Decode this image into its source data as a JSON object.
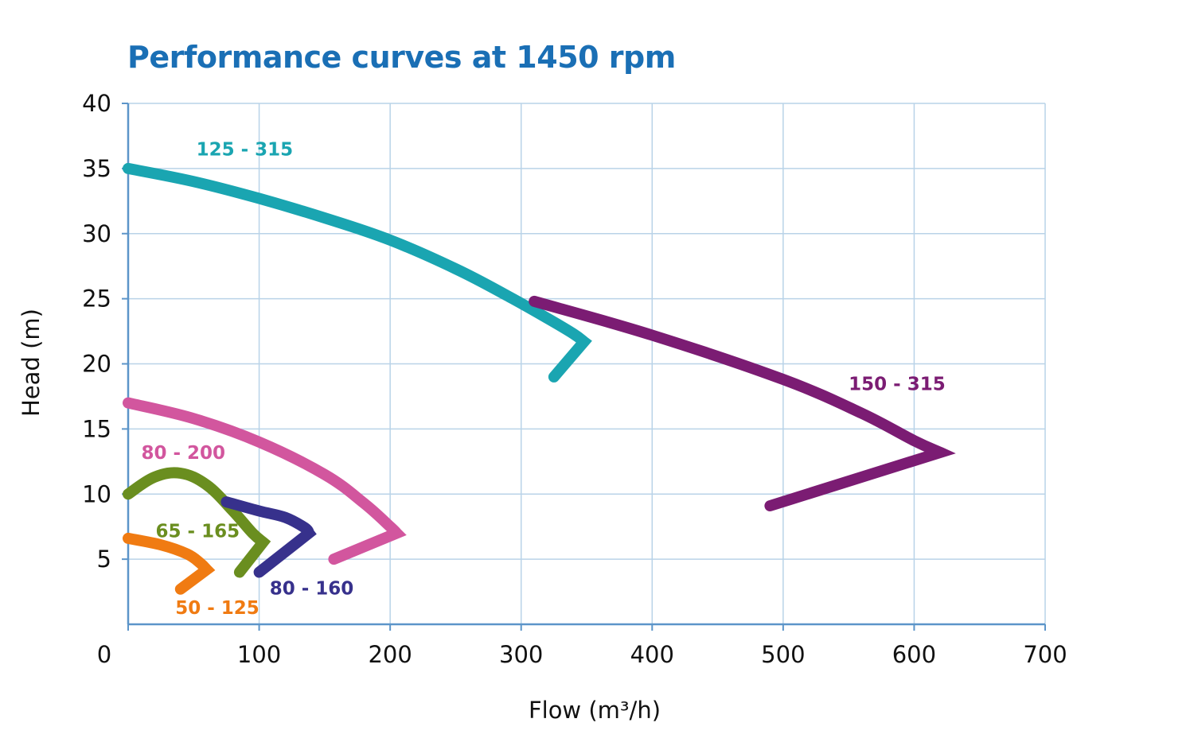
{
  "chart_data": {
    "type": "line",
    "title": "Performance curves at 1450 rpm",
    "title_color": "#1a6fb5",
    "xlabel": "Flow (m³/h)",
    "ylabel": "Head (m)",
    "xlim": [
      0,
      700
    ],
    "ylim": [
      0,
      40
    ],
    "x_ticks": [
      "0",
      "100",
      "200",
      "300",
      "400",
      "500",
      "600",
      "700"
    ],
    "y_ticks": [
      "5",
      "10",
      "15",
      "20",
      "25",
      "30",
      "35",
      "40"
    ],
    "grid": true,
    "grid_color": "#b9d3e8",
    "axis_color": "#5c95c9",
    "series": [
      {
        "name": "125 - 315",
        "color": "#1aa5b1",
        "x": [
          0,
          50,
          100,
          150,
          200,
          250,
          290,
          320,
          340,
          348,
          325
        ],
        "y": [
          35,
          34,
          32.7,
          31.2,
          29.5,
          27.3,
          25.2,
          23.5,
          22.3,
          21.7,
          19
        ],
        "label_at": [
          52,
          36
        ]
      },
      {
        "name": "150 - 315",
        "color": "#7b1c73",
        "x": [
          310,
          400,
          500,
          560,
          600,
          620,
          490
        ],
        "y": [
          24.8,
          22.2,
          18.8,
          16.2,
          14.1,
          13.2,
          9.1
        ],
        "label_at": [
          550,
          18
        ]
      },
      {
        "name": "80 - 200",
        "color": "#d2569e",
        "x": [
          0,
          50,
          100,
          150,
          180,
          200,
          205,
          157
        ],
        "y": [
          17,
          15.8,
          14,
          11.5,
          9.3,
          7.5,
          7,
          5
        ],
        "label_at": [
          10,
          12.7
        ]
      },
      {
        "name": "65 - 165",
        "color": "#6a8e1f",
        "x": [
          0,
          20,
          40,
          60,
          80,
          95,
          103,
          85
        ],
        "y": [
          10,
          11.3,
          11.6,
          10.7,
          8.7,
          7,
          6.3,
          4
        ],
        "label_at": [
          21,
          6.7
        ]
      },
      {
        "name": "80 - 160",
        "color": "#37318c",
        "x": [
          75,
          100,
          120,
          135,
          138,
          100
        ],
        "y": [
          9.4,
          8.7,
          8.2,
          7.4,
          7,
          4
        ],
        "label_at": [
          108,
          2.3
        ]
      },
      {
        "name": "50 - 125",
        "color": "#f07b12",
        "x": [
          0,
          25,
          45,
          55,
          60,
          40
        ],
        "y": [
          6.6,
          6.1,
          5.4,
          4.7,
          4.2,
          2.7
        ],
        "label_at": [
          36,
          0.8
        ]
      }
    ]
  }
}
